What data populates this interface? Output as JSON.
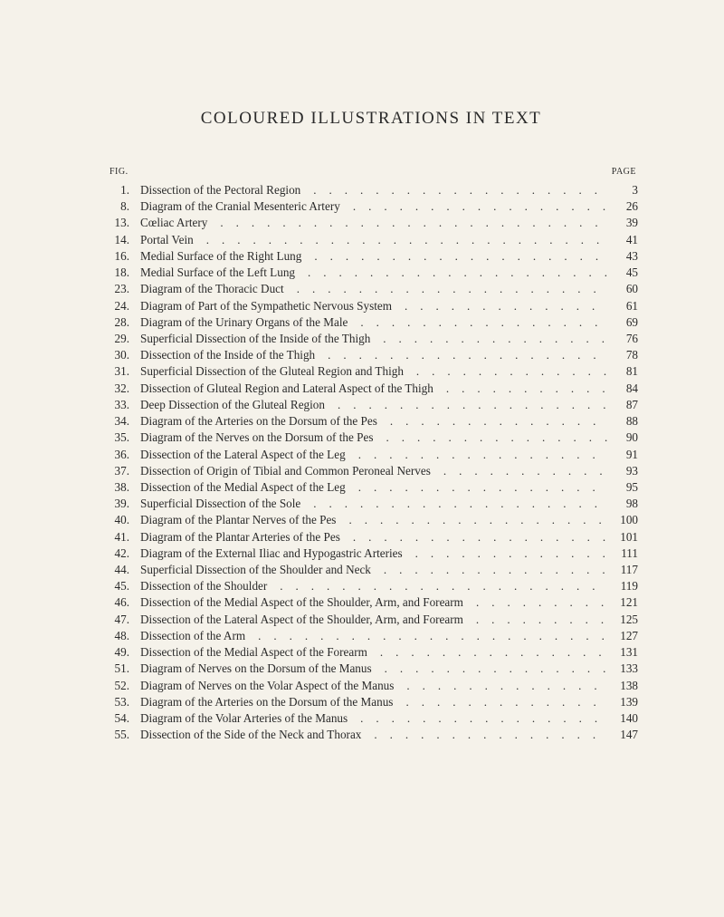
{
  "title": "COLOURED ILLUSTRATIONS IN TEXT",
  "heading_fig": "FIG.",
  "heading_page": "PAGE",
  "entries": [
    {
      "fig": "1.",
      "title": "Dissection of the Pectoral Region",
      "page": "3"
    },
    {
      "fig": "8.",
      "title": "Diagram of the Cranial Mesenteric Artery",
      "page": "26"
    },
    {
      "fig": "13.",
      "title": "Cœliac Artery",
      "page": "39"
    },
    {
      "fig": "14.",
      "title": "Portal Vein",
      "page": "41"
    },
    {
      "fig": "16.",
      "title": "Medial Surface of the Right Lung",
      "page": "43"
    },
    {
      "fig": "18.",
      "title": "Medial Surface of the Left Lung",
      "page": "45"
    },
    {
      "fig": "23.",
      "title": "Diagram of the Thoracic Duct",
      "page": "60"
    },
    {
      "fig": "24.",
      "title": "Diagram of Part of the Sympathetic Nervous System",
      "page": "61"
    },
    {
      "fig": "28.",
      "title": "Diagram of the Urinary Organs of the Male",
      "page": "69"
    },
    {
      "fig": "29.",
      "title": "Superficial Dissection of the Inside of the Thigh",
      "page": "76"
    },
    {
      "fig": "30.",
      "title": "Dissection of the Inside of the Thigh",
      "page": "78"
    },
    {
      "fig": "31.",
      "title": "Superficial Dissection of the Gluteal Region and Thigh",
      "page": "81"
    },
    {
      "fig": "32.",
      "title": "Dissection of Gluteal Region and Lateral Aspect of the Thigh",
      "page": "84"
    },
    {
      "fig": "33.",
      "title": "Deep Dissection of the Gluteal Region",
      "page": "87"
    },
    {
      "fig": "34.",
      "title": "Diagram of the Arteries on the Dorsum of the Pes",
      "page": "88"
    },
    {
      "fig": "35.",
      "title": "Diagram of the Nerves on the Dorsum of the Pes",
      "page": "90"
    },
    {
      "fig": "36.",
      "title": "Dissection of the Lateral Aspect of the Leg",
      "page": "91"
    },
    {
      "fig": "37.",
      "title": "Dissection of Origin of Tibial and Common Peroneal Nerves",
      "page": "93"
    },
    {
      "fig": "38.",
      "title": "Dissection of the Medial Aspect of the Leg",
      "page": "95"
    },
    {
      "fig": "39.",
      "title": "Superficial Dissection of the Sole",
      "page": "98"
    },
    {
      "fig": "40.",
      "title": "Diagram of the Plantar Nerves of the Pes",
      "page": "100"
    },
    {
      "fig": "41.",
      "title": "Diagram of the Plantar Arteries of the Pes",
      "page": "101"
    },
    {
      "fig": "42.",
      "title": "Diagram of the External Iliac and Hypogastric Arteries",
      "page": "111"
    },
    {
      "fig": "44.",
      "title": "Superficial Dissection of the Shoulder and Neck",
      "page": "117"
    },
    {
      "fig": "45.",
      "title": "Dissection of the Shoulder",
      "page": "119"
    },
    {
      "fig": "46.",
      "title": "Dissection of the Medial Aspect of the Shoulder, Arm, and Forearm",
      "page": "121"
    },
    {
      "fig": "47.",
      "title": "Dissection of the Lateral Aspect of the Shoulder, Arm, and Forearm",
      "page": "125"
    },
    {
      "fig": "48.",
      "title": "Dissection of the Arm",
      "page": "127"
    },
    {
      "fig": "49.",
      "title": "Dissection of the Medial Aspect of the Forearm",
      "page": "131"
    },
    {
      "fig": "51.",
      "title": "Diagram of Nerves on the Dorsum of the Manus",
      "page": "133"
    },
    {
      "fig": "52.",
      "title": "Diagram of Nerves on the Volar Aspect of the Manus",
      "page": "138"
    },
    {
      "fig": "53.",
      "title": "Diagram of the Arteries on the Dorsum of the Manus",
      "page": "139"
    },
    {
      "fig": "54.",
      "title": "Diagram of the Volar Arteries of the Manus",
      "page": "140"
    },
    {
      "fig": "55.",
      "title": "Dissection of the Side of the Neck and Thorax",
      "page": "147"
    }
  ]
}
